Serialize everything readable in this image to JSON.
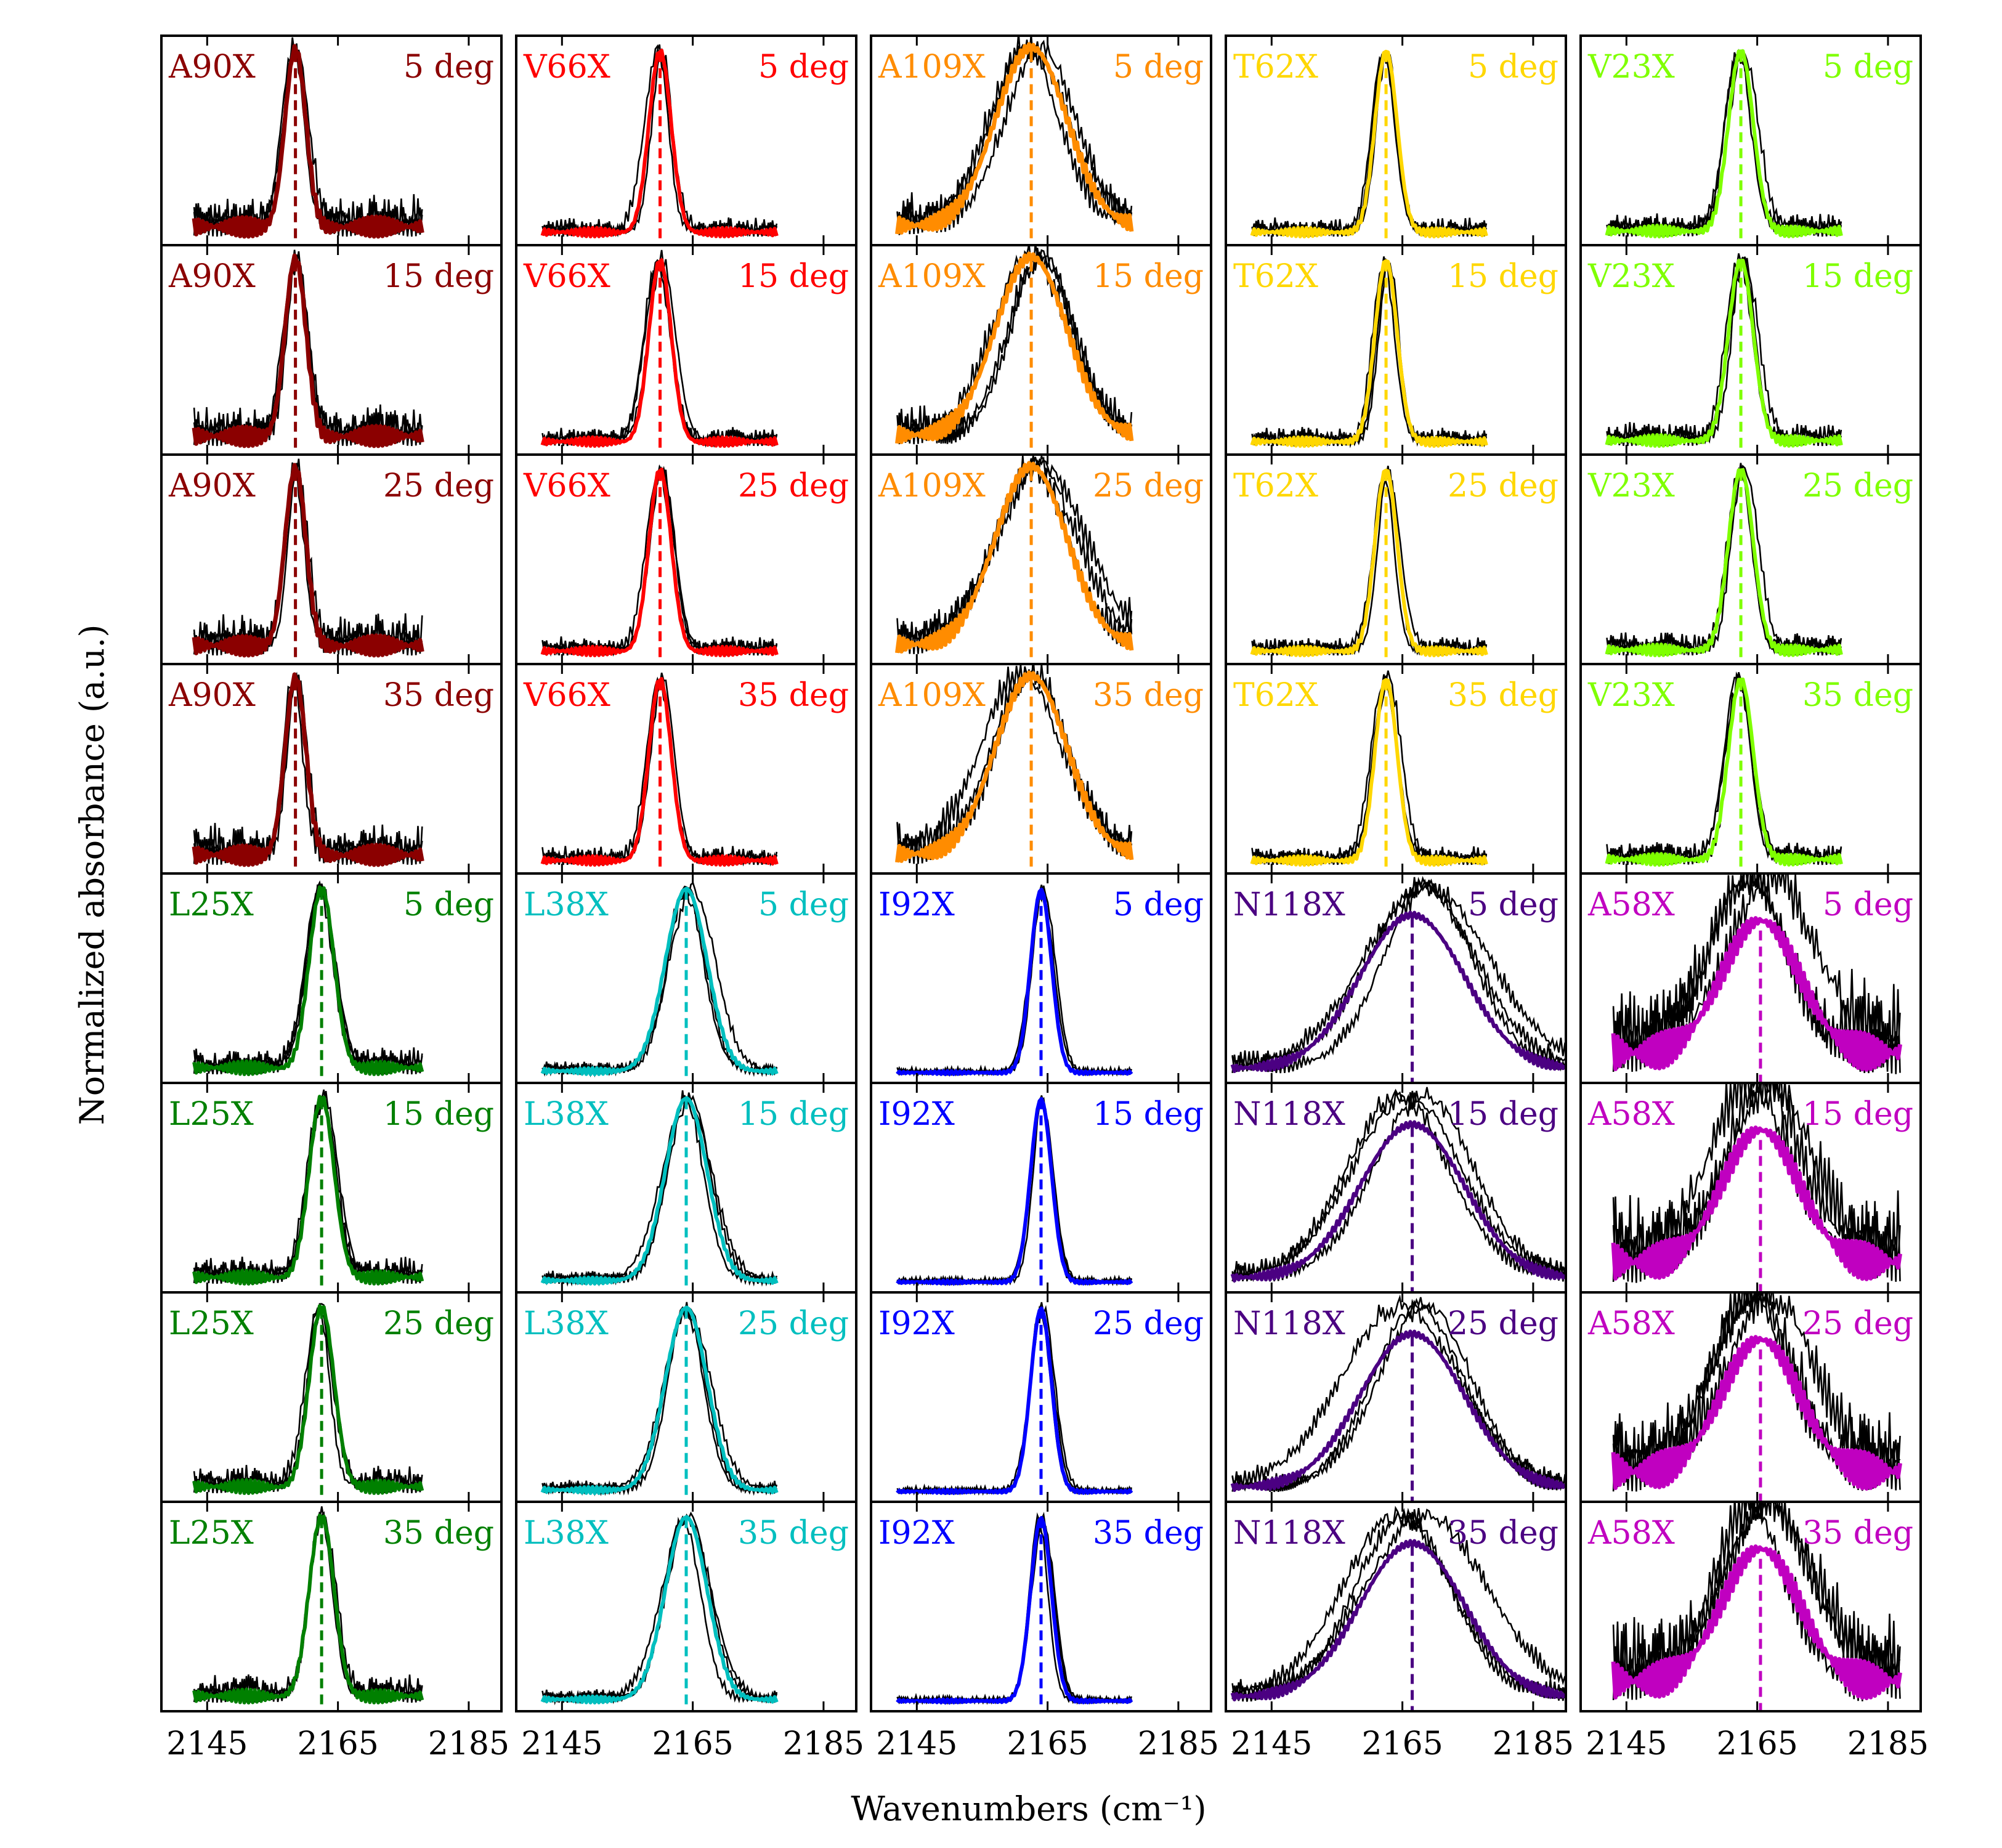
{
  "chart_data": {
    "type": "line",
    "xlabel": "Wavenumbers (cm⁻¹)",
    "ylabel": "Normalized absorbance (a.u.)",
    "x_ticks": [
      "2145",
      "2165",
      "2185"
    ],
    "xlim": [
      2138,
      2190
    ],
    "angles": [
      "5 deg",
      "15 deg",
      "25 deg",
      "35 deg"
    ],
    "x_tick_values": [
      2145,
      2165,
      2185
    ],
    "column_groups": [
      {
        "rows": "top",
        "mutants": [
          {
            "name": "A90X",
            "color": "#8b0000",
            "center": 2158.5,
            "width": 1.6,
            "range": [
              2143,
              2178
            ],
            "noise": 0.18,
            "comp": 1.0
          },
          {
            "name": "V66X",
            "color": "#ff0000",
            "center": 2160.0,
            "width": 1.7,
            "range": [
              2142,
              2178
            ],
            "noise": 0.08,
            "comp": 1.0
          },
          {
            "name": "A109X",
            "color": "#ff8c00",
            "center": 2162.5,
            "width": 5.5,
            "range": [
              2142,
              2178
            ],
            "noise": 0.22,
            "comp": 1.0
          },
          {
            "name": "T62X",
            "color": "#ffd700",
            "center": 2162.5,
            "width": 1.7,
            "range": [
              2142,
              2178
            ],
            "noise": 0.08,
            "comp": 1.0
          },
          {
            "name": "V23X",
            "color": "#7fff00",
            "center": 2162.5,
            "width": 1.9,
            "range": [
              2142,
              2178
            ],
            "noise": 0.1,
            "comp": 1.0
          }
        ]
      },
      {
        "rows": "bottom",
        "mutants": [
          {
            "name": "L25X",
            "color": "#008000",
            "center": 2162.5,
            "width": 1.9,
            "range": [
              2143,
              2178
            ],
            "noise": 0.12,
            "comp": 1.0
          },
          {
            "name": "L38X",
            "color": "#00bfbf",
            "center": 2164.0,
            "width": 3.2,
            "range": [
              2142,
              2178
            ],
            "noise": 0.06,
            "comp": 1.0
          },
          {
            "name": "I92X",
            "color": "#0000ff",
            "center": 2164.0,
            "width": 1.6,
            "range": [
              2142,
              2178
            ],
            "noise": 0.03,
            "comp": 1.0
          },
          {
            "name": "N118X",
            "color": "#4b0082",
            "center": 2166.5,
            "width": 8.0,
            "range": [
              2139,
              2190
            ],
            "noise": 0.12,
            "comp": 0.85
          },
          {
            "name": "A58X",
            "color": "#c000c0",
            "center": 2165.5,
            "width": 6.0,
            "range": [
              2143,
              2187
            ],
            "noise": 0.45,
            "comp": 0.78
          }
        ]
      }
    ]
  }
}
